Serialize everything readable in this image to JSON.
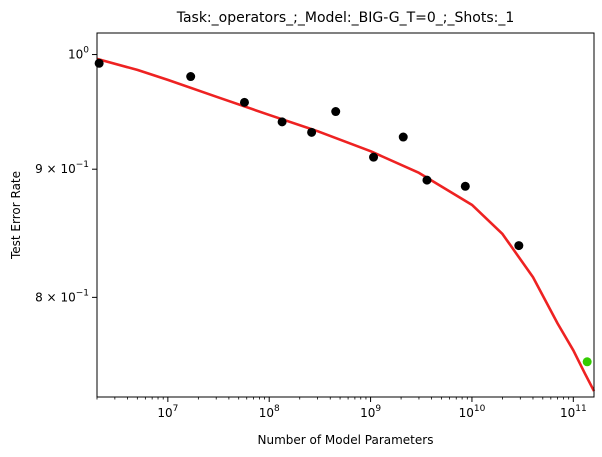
{
  "chart_data": {
    "type": "scatter",
    "title": "Task:_operators_;_Model:_BIG-G_T=0_;_Shots:_1",
    "xlabel": "Number of Model Parameters",
    "ylabel": "Test Error Rate",
    "xscale": "log",
    "yscale": "log",
    "xlim": [
      2000000,
      160000000000
    ],
    "ylim": [
      0.73,
      1.02
    ],
    "grid": false,
    "x_ticks": [
      {
        "value": 10000000,
        "base": "10",
        "exp": "7"
      },
      {
        "value": 100000000,
        "base": "10",
        "exp": "8"
      },
      {
        "value": 1000000000,
        "base": "10",
        "exp": "9"
      },
      {
        "value": 10000000000,
        "base": "10",
        "exp": "10"
      },
      {
        "value": 100000000000,
        "base": "10",
        "exp": "11"
      }
    ],
    "y_ticks": [
      {
        "value": 1.0,
        "base": "10",
        "exp": "0",
        "coef": ""
      },
      {
        "value": 0.9,
        "base": "10",
        "exp": "−1",
        "coef": "9 × "
      },
      {
        "value": 0.8,
        "base": "10",
        "exp": "−1",
        "coef": "8 × "
      }
    ],
    "series": [
      {
        "kind": "points",
        "color": "#000000",
        "x": [
          2100000,
          16800000,
          57000000,
          134000000,
          262000000,
          453000000,
          1070000000,
          2100000000,
          3600000000,
          8600000000,
          29000000000
        ],
        "y": [
          0.992,
          0.98,
          0.957,
          0.94,
          0.931,
          0.949,
          0.91,
          0.927,
          0.891,
          0.886,
          0.839
        ]
      },
      {
        "kind": "points",
        "color": "#33cc00",
        "x": [
          137000000000
        ],
        "y": [
          0.754
        ]
      },
      {
        "kind": "fit-line",
        "color": "#ee2222",
        "x": [
          2000000,
          5000000,
          10000000,
          30000000,
          100000000,
          300000000,
          1000000000,
          3000000000,
          10000000000,
          20000000000,
          40000000000,
          70000000000,
          100000000000,
          130000000000,
          160000000000
        ],
        "y": [
          0.996,
          0.986,
          0.977,
          0.962,
          0.946,
          0.932,
          0.915,
          0.897,
          0.871,
          0.848,
          0.815,
          0.781,
          0.762,
          0.746,
          0.734
        ]
      }
    ]
  }
}
